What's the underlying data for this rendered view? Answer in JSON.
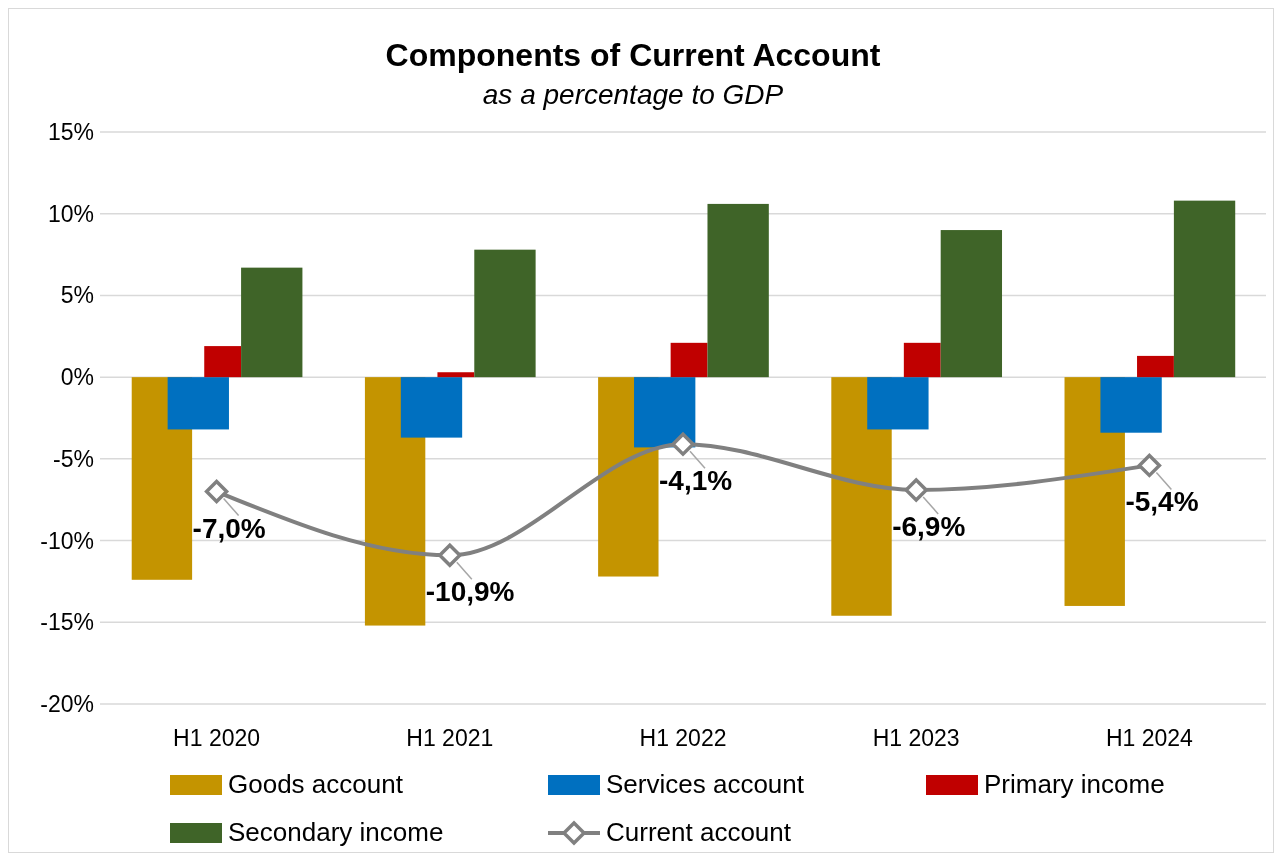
{
  "chart_data": {
    "type": "bar",
    "title": "Components of Current Account",
    "subtitle": "as a percentage to GDP",
    "categories": [
      "H1 2020",
      "H1 2021",
      "H1 2022",
      "H1 2023",
      "H1 2024"
    ],
    "series": [
      {
        "name": "Goods account",
        "color": "#c49400",
        "values": [
          -12.4,
          -15.2,
          -12.2,
          -14.6,
          -14.0
        ]
      },
      {
        "name": "Services account",
        "color": "#0070c0",
        "values": [
          -3.2,
          -3.7,
          -4.3,
          -3.2,
          -3.4
        ]
      },
      {
        "name": "Primary income",
        "color": "#c00000",
        "values": [
          1.9,
          0.3,
          2.1,
          2.1,
          1.3
        ]
      },
      {
        "name": "Secondary income",
        "color": "#3f6428",
        "values": [
          6.7,
          7.8,
          10.6,
          9.0,
          10.8
        ]
      },
      {
        "name": "Current account",
        "type": "line",
        "color": "#808080",
        "marker": "diamond",
        "values": [
          -7.0,
          -10.9,
          -4.1,
          -6.9,
          -5.4
        ],
        "value_labels": [
          "-7,0%",
          "-10,9%",
          "-4,1%",
          "-6,9%",
          "-5,4%"
        ]
      }
    ],
    "ylim": [
      -20,
      15
    ],
    "yticks": [
      {
        "value": -20,
        "label": "-20%"
      },
      {
        "value": -15,
        "label": "-15%"
      },
      {
        "value": -10,
        "label": "-10%"
      },
      {
        "value": -5,
        "label": "-5%"
      },
      {
        "value": 0,
        "label": "0%"
      },
      {
        "value": 5,
        "label": "5%"
      },
      {
        "value": 10,
        "label": "10%"
      },
      {
        "value": 15,
        "label": "15%"
      }
    ],
    "grid": "y",
    "legend": "bottom"
  }
}
